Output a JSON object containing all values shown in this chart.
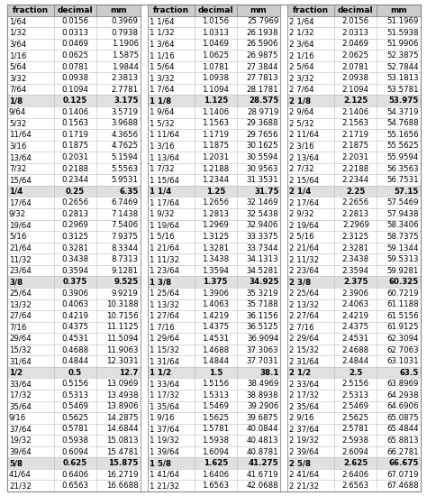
{
  "rows": [
    [
      "1/64",
      "0.0156",
      "0.3969",
      "1 1/64",
      "1.0156",
      "25.7969",
      "2 1/64",
      "2.0156",
      "51.1969"
    ],
    [
      "1/32",
      "0.0313",
      "0.7938",
      "1 1/32",
      "1.0313",
      "26.1938",
      "2 1/32",
      "2.0313",
      "51.5938"
    ],
    [
      "3/64",
      "0.0469",
      "1.1906",
      "1 3/64",
      "1.0469",
      "26.5906",
      "2 3/64",
      "2.0469",
      "51.9906"
    ],
    [
      "1/16",
      "0.0625",
      "1.5875",
      "1 1/16",
      "1.0625",
      "26.9875",
      "2 1/16",
      "2.0625",
      "52.3875"
    ],
    [
      "5/64",
      "0.0781",
      "1.9844",
      "1 5/64",
      "1.0781",
      "27.3844",
      "2 5/64",
      "2.0781",
      "52.7844"
    ],
    [
      "3/32",
      "0.0938",
      "2.3813",
      "1 3/32",
      "1.0938",
      "27.7813",
      "2 3/32",
      "2.0938",
      "53.1813"
    ],
    [
      "7/64",
      "0.1094",
      "2.7781",
      "1 7/64",
      "1.1094",
      "28.1781",
      "2 7/64",
      "2.1094",
      "53.5781"
    ],
    [
      "1/8",
      "0.125",
      "3.175",
      "1 1/8",
      "1.125",
      "28.575",
      "2 1/8",
      "2.125",
      "53.975"
    ],
    [
      "9/64",
      "0.1406",
      "3.5719",
      "1 9/64",
      "1.1406",
      "28.9719",
      "2 9/64",
      "2.1406",
      "54.3719"
    ],
    [
      "5/32",
      "0.1563",
      "3.9688",
      "1 5/32",
      "1.1563",
      "29.3688",
      "2 5/32",
      "2.1563",
      "54.7688"
    ],
    [
      "11/64",
      "0.1719",
      "4.3656",
      "1 11/64",
      "1.1719",
      "29.7656",
      "2 11/64",
      "2.1719",
      "55.1656"
    ],
    [
      "3/16",
      "0.1875",
      "4.7625",
      "1 3/16",
      "1.1875",
      "30.1625",
      "2 3/16",
      "2.1875",
      "55.5625"
    ],
    [
      "13/64",
      "0.2031",
      "5.1594",
      "1 13/64",
      "1.2031",
      "30.5594",
      "2 13/64",
      "2.2031",
      "55.9594"
    ],
    [
      "7/32",
      "0.2188",
      "5.5563",
      "1 7/32",
      "1.2188",
      "30.9563",
      "2 7/32",
      "2.2188",
      "56.3563"
    ],
    [
      "15/64",
      "0.2344",
      "5.9531",
      "1 15/64",
      "1.2344",
      "31.3531",
      "2 15/64",
      "2.2344",
      "56.7531"
    ],
    [
      "1/4",
      "0.25",
      "6.35",
      "1 1/4",
      "1.25",
      "31.75",
      "2 1/4",
      "2.25",
      "57.15"
    ],
    [
      "17/64",
      "0.2656",
      "6.7469",
      "1 17/64",
      "1.2656",
      "32.1469",
      "2 17/64",
      "2.2656",
      "57.5469"
    ],
    [
      "9/32",
      "0.2813",
      "7.1438",
      "1 9/32",
      "1.2813",
      "32.5438",
      "2 9/32",
      "2.2813",
      "57.9438"
    ],
    [
      "19/64",
      "0.2969",
      "7.5406",
      "1 19/64",
      "1.2969",
      "32.9406",
      "2 19/64",
      "2.2969",
      "58.3406"
    ],
    [
      "5/16",
      "0.3125",
      "7.9375",
      "1 5/16",
      "1.3125",
      "33.3375",
      "2 5/16",
      "2.3125",
      "58.7375"
    ],
    [
      "21/64",
      "0.3281",
      "8.3344",
      "1 21/64",
      "1.3281",
      "33.7344",
      "2 21/64",
      "2.3281",
      "59.1344"
    ],
    [
      "11/32",
      "0.3438",
      "8.7313",
      "1 11/32",
      "1.3438",
      "34.1313",
      "2 11/32",
      "2.3438",
      "59.5313"
    ],
    [
      "23/64",
      "0.3594",
      "9.1281",
      "1 23/64",
      "1.3594",
      "34.5281",
      "2 23/64",
      "2.3594",
      "59.9281"
    ],
    [
      "3/8",
      "0.375",
      "9.525",
      "1 3/8",
      "1.375",
      "34.925",
      "2 3/8",
      "2.375",
      "60.325"
    ],
    [
      "25/64",
      "0.3906",
      "9.9219",
      "1 25/64",
      "1.3906",
      "35.3219",
      "2 25/64",
      "2.3906",
      "60.7219"
    ],
    [
      "13/32",
      "0.4063",
      "10.3188",
      "1 13/32",
      "1.4063",
      "35.7188",
      "2 13/32",
      "2.4063",
      "61.1188"
    ],
    [
      "27/64",
      "0.4219",
      "10.7156",
      "1 27/64",
      "1.4219",
      "36.1156",
      "2 27/64",
      "2.4219",
      "61.5156"
    ],
    [
      "7/16",
      "0.4375",
      "11.1125",
      "1 7/16",
      "1.4375",
      "36.5125",
      "2 7/16",
      "2.4375",
      "61.9125"
    ],
    [
      "29/64",
      "0.4531",
      "11.5094",
      "1 29/64",
      "1.4531",
      "36.9094",
      "2 29/64",
      "2.4531",
      "62.3094"
    ],
    [
      "15/32",
      "0.4688",
      "11.9063",
      "1 15/32",
      "1.4688",
      "37.3063",
      "2 15/32",
      "2.4688",
      "62.7063"
    ],
    [
      "31/64",
      "0.4844",
      "12.3031",
      "1 31/64",
      "1.4844",
      "37.7031",
      "2 31/64",
      "2.4844",
      "63.1031"
    ],
    [
      "1/2",
      "0.5",
      "12.7",
      "1 1/2",
      "1.5",
      "38.1",
      "2 1/2",
      "2.5",
      "63.5"
    ],
    [
      "33/64",
      "0.5156",
      "13.0969",
      "1 33/64",
      "1.5156",
      "38.4969",
      "2 33/64",
      "2.5156",
      "63.8969"
    ],
    [
      "17/32",
      "0.5313",
      "13.4938",
      "1 17/32",
      "1.5313",
      "38.8938",
      "2 17/32",
      "2.5313",
      "64.2938"
    ],
    [
      "35/64",
      "0.5469",
      "13.8906",
      "1 35/64",
      "1.5469",
      "39.2906",
      "2 35/64",
      "2.5469",
      "64.6906"
    ],
    [
      "9/16",
      "0.5625",
      "14.2875",
      "1 9/16",
      "1.5625",
      "39.6875",
      "2 9/16",
      "2.5625",
      "65.0875"
    ],
    [
      "37/64",
      "0.5781",
      "14.6844",
      "1 37/64",
      "1.5781",
      "40.0844",
      "2 37/64",
      "2.5781",
      "65.4844"
    ],
    [
      "19/32",
      "0.5938",
      "15.0813",
      "1 19/32",
      "1.5938",
      "40.4813",
      "2 19/32",
      "2.5938",
      "65.8813"
    ],
    [
      "39/64",
      "0.6094",
      "15.4781",
      "1 39/64",
      "1.6094",
      "40.8781",
      "2 39/64",
      "2.6094",
      "66.2781"
    ],
    [
      "5/8",
      "0.625",
      "15.875",
      "1 5/8",
      "1.625",
      "41.275",
      "2 5/8",
      "2.625",
      "66.675"
    ],
    [
      "41/64",
      "0.6406",
      "16.2719",
      "1 41/64",
      "1.6406",
      "41.6719",
      "2 41/64",
      "2.6406",
      "67.0719"
    ],
    [
      "21/32",
      "0.6563",
      "16.6688",
      "1 21/32",
      "1.6563",
      "42.0688",
      "2 21/32",
      "2.6563",
      "67.4688"
    ]
  ],
  "bold_fractions": [
    "1/8",
    "1/4",
    "3/8",
    "1/2",
    "5/8"
  ],
  "bg_color": "#ffffff",
  "header_bg": "#cccccc",
  "bold_row_bg": "#e0e0e0",
  "border_color": "#888888",
  "grid_color": "#bbbbbb",
  "font_size": 6.2,
  "header_font_size": 6.5,
  "fig_width": 4.74,
  "fig_height": 5.5,
  "dpi": 100
}
